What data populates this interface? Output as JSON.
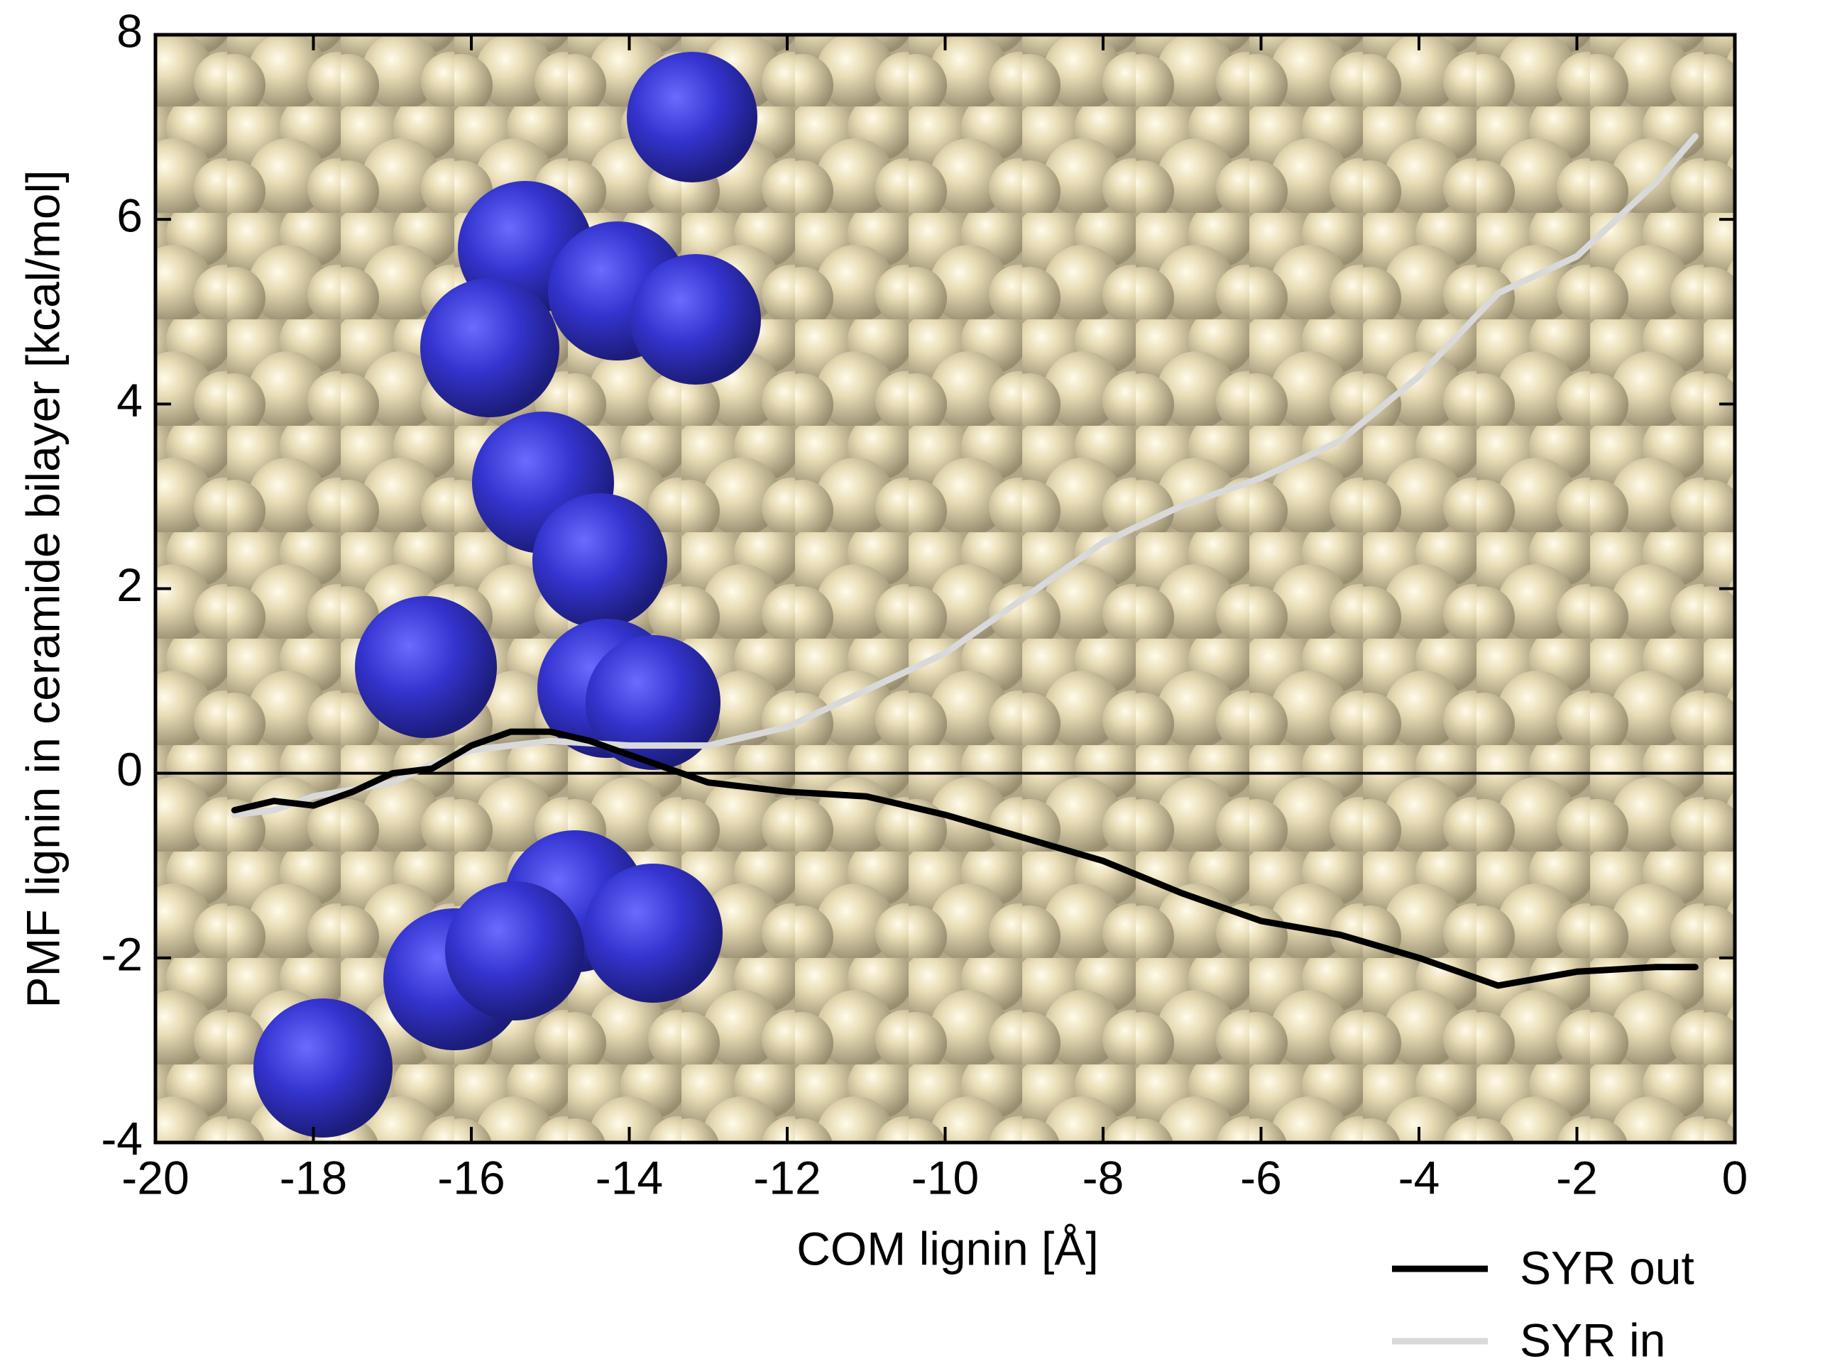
{
  "chart_data": {
    "type": "line",
    "xlabel": "COM lignin [Å]",
    "ylabel": "PMF lignin in ceramide bilayer [kcal/mol]",
    "xlim": [
      -20,
      0
    ],
    "xticks": [
      -20,
      -18,
      -16,
      -14,
      -12,
      -10,
      -8,
      -6,
      -4,
      -2,
      0
    ],
    "ylim": [
      -4,
      8
    ],
    "yticks": [
      -4,
      -2,
      0,
      2,
      4,
      6,
      8
    ],
    "reference_line": 0,
    "legend": "bottom-right",
    "series": [
      {
        "name": "SYR out",
        "color": "#000000",
        "x": [
          -19,
          -18.5,
          -18,
          -17.5,
          -17,
          -16.5,
          -16,
          -15.5,
          -15,
          -14.5,
          -14,
          -13.5,
          -13,
          -12.5,
          -12,
          -11,
          -10,
          -9,
          -8,
          -7,
          -6,
          -5,
          -4,
          -3,
          -2,
          -1,
          -0.5
        ],
        "values": [
          -0.4,
          -0.3,
          -0.35,
          -0.2,
          0,
          0.05,
          0.3,
          0.45,
          0.45,
          0.35,
          0.2,
          0.05,
          -0.1,
          -0.15,
          -0.2,
          -0.25,
          -0.45,
          -0.7,
          -0.95,
          -1.3,
          -1.6,
          -1.75,
          -2.0,
          -2.3,
          -2.15,
          -2.1,
          -2.1
        ]
      },
      {
        "name": "SYR in",
        "color": "#d9d9d9",
        "x": [
          -19,
          -18.5,
          -18,
          -17,
          -16.5,
          -16,
          -15,
          -14,
          -13,
          -12,
          -11,
          -10,
          -9,
          -8,
          -7,
          -6,
          -5,
          -4,
          -3,
          -2,
          -1,
          -0.5
        ],
        "values": [
          -0.45,
          -0.4,
          -0.25,
          -0.1,
          0.1,
          0.25,
          0.35,
          0.3,
          0.3,
          0.5,
          0.9,
          1.3,
          1.9,
          2.5,
          2.9,
          3.2,
          3.6,
          4.3,
          5.2,
          5.6,
          6.4,
          6.9
        ]
      }
    ]
  }
}
